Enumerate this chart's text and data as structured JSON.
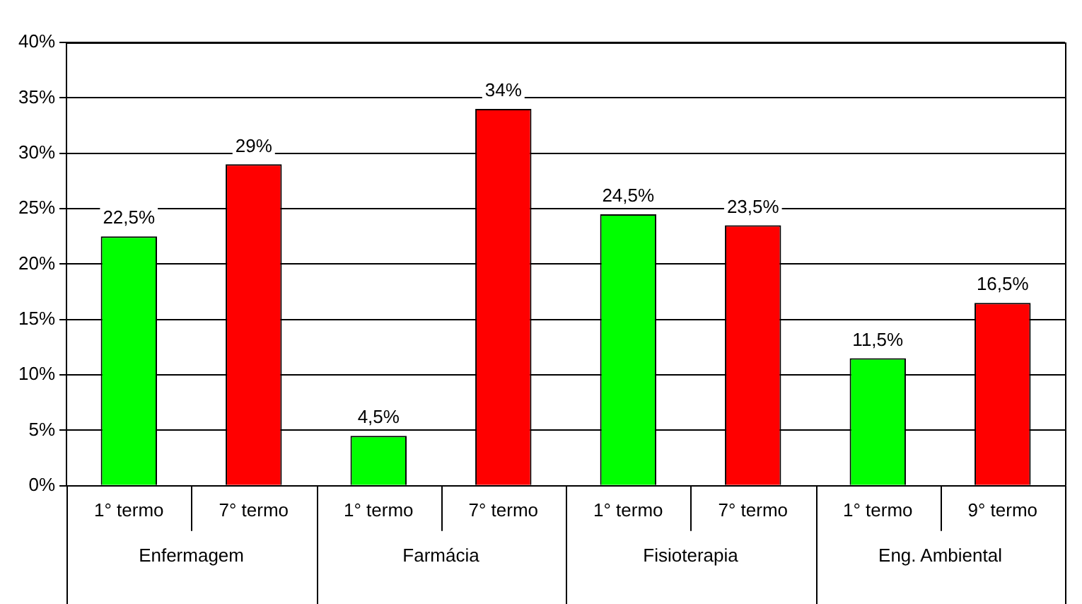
{
  "chart_data": {
    "type": "bar",
    "categories": [
      "1° termo",
      "7° termo",
      "1° termo",
      "7° termo",
      "1° termo",
      "7° termo",
      "1° termo",
      "9° termo"
    ],
    "values": [
      22.5,
      29,
      4.5,
      34,
      24.5,
      23.5,
      11.5,
      16.5
    ],
    "colors": [
      "#00ff00",
      "#ff0000",
      "#00ff00",
      "#ff0000",
      "#00ff00",
      "#ff0000",
      "#00ff00",
      "#ff0000"
    ],
    "value_labels": [
      "22,5%",
      "29%",
      "4,5%",
      "34%",
      "24,5%",
      "23,5%",
      "11,5%",
      "16,5%"
    ],
    "annotations": [
      "Enfermagem",
      "Farmácia",
      "Fisioterapia",
      "Eng. Ambiental"
    ],
    "ylim": [
      0,
      40
    ],
    "yticks": [
      {
        "value": 0,
        "label": "0%"
      },
      {
        "value": 5,
        "label": "5%"
      },
      {
        "value": 10,
        "label": "10%"
      },
      {
        "value": 15,
        "label": "15%"
      },
      {
        "value": 20,
        "label": "20%"
      },
      {
        "value": 25,
        "label": "25%"
      },
      {
        "value": 30,
        "label": "30%"
      },
      {
        "value": 35,
        "label": "35%"
      },
      {
        "value": 40,
        "label": "40%"
      }
    ],
    "grid": "y",
    "legend": false
  }
}
